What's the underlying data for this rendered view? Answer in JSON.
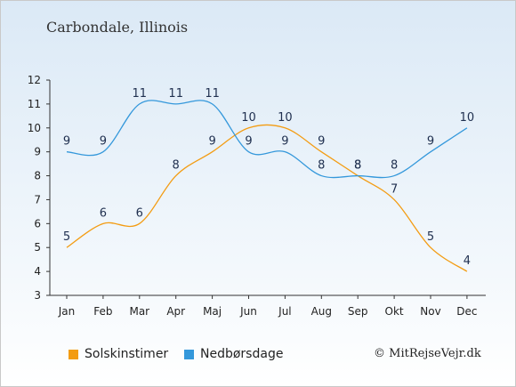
{
  "chart_data": {
    "type": "line",
    "title": "Carbondale, Illinois",
    "categories": [
      "Jan",
      "Feb",
      "Mar",
      "Apr",
      "Maj",
      "Jun",
      "Jul",
      "Aug",
      "Sep",
      "Okt",
      "Nov",
      "Dec"
    ],
    "yticks": [
      3,
      4,
      5,
      6,
      7,
      8,
      9,
      10,
      11,
      12
    ],
    "ylim": [
      3,
      12
    ],
    "series": [
      {
        "name": "Solskinstimer",
        "color": "#f39c12",
        "values": [
          5,
          6,
          6,
          8,
          9,
          10,
          10,
          9,
          8,
          7,
          5,
          4
        ]
      },
      {
        "name": "Nedbørsdage",
        "color": "#3498db",
        "values": [
          9,
          9,
          11,
          11,
          11,
          9,
          9,
          8,
          8,
          8,
          9,
          10
        ]
      }
    ],
    "legend_position": "bottom",
    "grid": false
  },
  "credit": "© MitRejseVejr.dk"
}
